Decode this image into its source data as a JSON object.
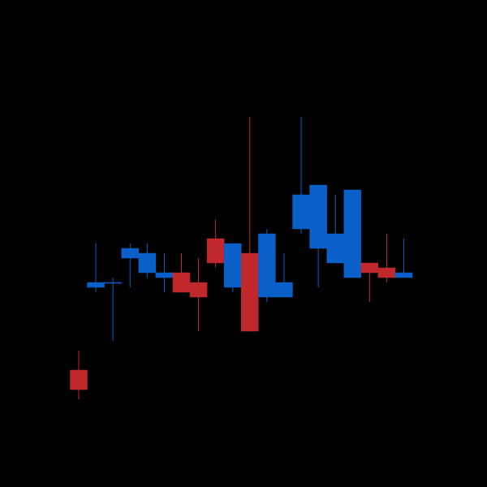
{
  "chart_data": {
    "type": "candlestick",
    "title": "",
    "xlabel": "",
    "ylabel": "",
    "grid": false,
    "legend": "none",
    "axes_visible": false,
    "colors": {
      "background": "#000000",
      "up": "#0a5fc8",
      "down": "#c0282c"
    },
    "ylim": [
      0,
      100
    ],
    "candles": [
      {
        "open": 24,
        "close": 20,
        "high": 28,
        "low": 18
      },
      {
        "open": 41,
        "close": 42,
        "high": 50,
        "low": 40
      },
      {
        "open": 42,
        "close": 42,
        "high": 43,
        "low": 30
      },
      {
        "open": 47,
        "close": 49,
        "high": 50,
        "low": 41
      },
      {
        "open": 44,
        "close": 48,
        "high": 50,
        "low": 43
      },
      {
        "open": 43,
        "close": 44,
        "high": 48,
        "low": 40
      },
      {
        "open": 44,
        "close": 40,
        "high": 48,
        "low": 40
      },
      {
        "open": 42,
        "close": 39,
        "high": 47,
        "low": 32
      },
      {
        "open": 51,
        "close": 46,
        "high": 55,
        "low": 45
      },
      {
        "open": 41,
        "close": 50,
        "high": 50,
        "low": 40
      },
      {
        "open": 48,
        "close": 32,
        "high": 76,
        "low": 32
      },
      {
        "open": 39,
        "close": 52,
        "high": 53,
        "low": 38
      },
      {
        "open": 39,
        "close": 42,
        "high": 48,
        "low": 39
      },
      {
        "open": 53,
        "close": 60,
        "high": 76,
        "low": 52
      },
      {
        "open": 49,
        "close": 62,
        "high": 62,
        "low": 41
      },
      {
        "open": 46,
        "close": 52,
        "high": 60,
        "low": 47
      },
      {
        "open": 43,
        "close": 61,
        "high": 61,
        "low": 43
      },
      {
        "open": 46,
        "close": 44,
        "high": 46,
        "low": 38
      },
      {
        "open": 45,
        "close": 43,
        "high": 52,
        "low": 42
      },
      {
        "open": 43,
        "close": 44,
        "high": 51,
        "low": 44
      }
    ]
  }
}
